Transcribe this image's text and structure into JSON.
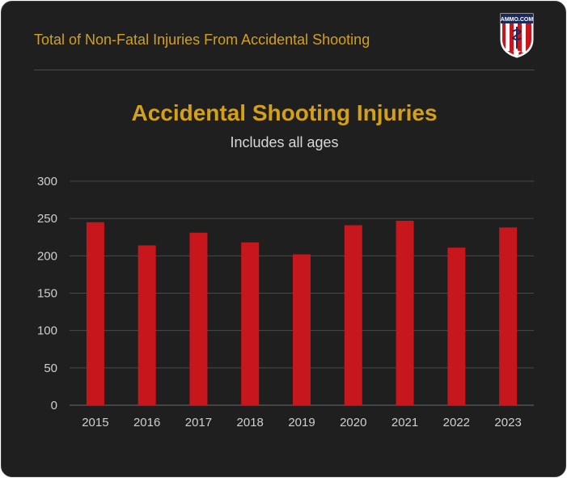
{
  "header": {
    "title": "Total of Non-Fatal Injuries From Accidental Shooting",
    "logo_text": "AMMO.COM"
  },
  "colors": {
    "background": "#1f1f1f",
    "accent": "#d4a017",
    "bar": "#c8161d",
    "grid": "#4a4a4a",
    "text": "#d8d8d8"
  },
  "chart_data": {
    "type": "bar",
    "title": "Accidental Shooting Injuries",
    "subtitle": "Includes all ages",
    "xlabel": "",
    "ylabel": "",
    "categories": [
      "2015",
      "2016",
      "2017",
      "2018",
      "2019",
      "2020",
      "2021",
      "2022",
      "2023"
    ],
    "series": [
      {
        "values": [
          245,
          214,
          231,
          218,
          202,
          241,
          247,
          211,
          238
        ]
      }
    ],
    "ylim": [
      0,
      300
    ],
    "yticks": [
      0,
      50,
      100,
      150,
      200,
      250,
      300
    ],
    "grid": true,
    "legend": "none"
  }
}
